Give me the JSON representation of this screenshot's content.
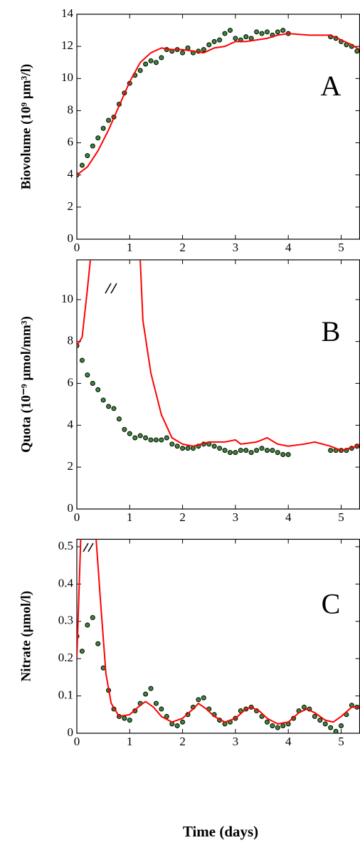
{
  "chart_data": [
    {
      "type": "line",
      "y_label": "Biovolume (10⁹ µm³/l)",
      "annotation": "A",
      "xlim": [
        0,
        5.35
      ],
      "xticks": [
        0,
        1,
        2,
        3,
        4,
        5
      ],
      "ylim": [
        0,
        14
      ],
      "yticks": [
        0,
        2,
        4,
        6,
        8,
        10,
        12,
        14
      ],
      "series": [
        {
          "marker": "o",
          "color": "#3a8a3a",
          "x": [
            0,
            0.1,
            0.2,
            0.3,
            0.4,
            0.5,
            0.6,
            0.7,
            0.8,
            0.9,
            1.0,
            1.1,
            1.2,
            1.3,
            1.4,
            1.5,
            1.6,
            1.7,
            1.8,
            1.9,
            2.0,
            2.1,
            2.2,
            2.3,
            2.4,
            2.5,
            2.6,
            2.7,
            2.8,
            2.9,
            3.0,
            3.1,
            3.2,
            3.3,
            3.4,
            3.5,
            3.6,
            3.7,
            3.8,
            3.9,
            4.0,
            4.8,
            4.9,
            5.0,
            5.1,
            5.2,
            5.3
          ],
          "values": [
            4,
            4.6,
            5.2,
            5.8,
            6.3,
            6.9,
            7.4,
            7.6,
            8.4,
            9.1,
            9.7,
            10.2,
            10.5,
            10.9,
            11.1,
            11.0,
            11.3,
            11.8,
            11.7,
            11.8,
            11.6,
            11.9,
            11.6,
            11.7,
            11.8,
            12.1,
            12.3,
            12.4,
            12.8,
            13.0,
            12.5,
            12.4,
            12.6,
            12.5,
            12.9,
            12.8,
            12.9,
            12.7,
            12.9,
            13.0,
            12.8,
            12.6,
            12.5,
            12.3,
            12.1,
            12.0,
            11.7
          ]
        },
        {
          "color": "#ff0000",
          "x": [
            0,
            0.2,
            0.4,
            0.6,
            0.8,
            1.0,
            1.2,
            1.4,
            1.6,
            1.8,
            2.0,
            2.2,
            2.4,
            2.6,
            2.8,
            3.0,
            3.2,
            3.4,
            3.6,
            3.8,
            4.0,
            4.4,
            4.8,
            5.0,
            5.2,
            5.35
          ],
          "values": [
            4,
            4.5,
            5.5,
            6.8,
            8.3,
            9.8,
            11.0,
            11.6,
            11.9,
            11.8,
            11.8,
            11.7,
            11.6,
            11.9,
            12.0,
            12.3,
            12.3,
            12.4,
            12.5,
            12.7,
            12.8,
            12.7,
            12.7,
            12.4,
            12.1,
            11.8
          ]
        }
      ]
    },
    {
      "type": "line",
      "y_label": "Quota (10⁻⁹ µmol/mm³)",
      "annotation": "B",
      "xlim": [
        0,
        5.35
      ],
      "xticks": [
        0,
        1,
        2,
        3,
        4,
        5
      ],
      "ylim": [
        0,
        11.9
      ],
      "yticks": [
        0,
        2,
        4,
        6,
        8,
        10
      ],
      "series": [
        {
          "marker": "o",
          "color": "#3a8a3a",
          "x": [
            0,
            0.1,
            0.2,
            0.3,
            0.4,
            0.5,
            0.6,
            0.7,
            0.8,
            0.9,
            1.0,
            1.1,
            1.2,
            1.3,
            1.4,
            1.5,
            1.6,
            1.7,
            1.8,
            1.9,
            2.0,
            2.1,
            2.2,
            2.3,
            2.4,
            2.5,
            2.6,
            2.7,
            2.8,
            2.9,
            3.0,
            3.1,
            3.2,
            3.3,
            3.4,
            3.5,
            3.6,
            3.7,
            3.8,
            3.9,
            4.0,
            4.8,
            4.9,
            5.0,
            5.1,
            5.2,
            5.3
          ],
          "values": [
            7.8,
            7.1,
            6.4,
            6.0,
            5.7,
            5.2,
            4.9,
            4.8,
            4.3,
            3.8,
            3.6,
            3.4,
            3.5,
            3.4,
            3.3,
            3.3,
            3.3,
            3.4,
            3.1,
            3.0,
            2.9,
            2.9,
            2.9,
            3.0,
            3.1,
            3.1,
            3.0,
            2.9,
            2.8,
            2.7,
            2.7,
            2.8,
            2.8,
            2.7,
            2.8,
            2.9,
            2.8,
            2.8,
            2.7,
            2.6,
            2.6,
            2.8,
            2.8,
            2.8,
            2.8,
            2.9,
            3.0
          ]
        },
        {
          "color": "#ff0000",
          "x": [
            0,
            0.1,
            0.2,
            0.3,
            null,
            1.18,
            1.25,
            1.4,
            1.6,
            1.8,
            2.0,
            2.2,
            2.5,
            2.8,
            3.0,
            3.1,
            3.4,
            3.6,
            3.8,
            4.0,
            4.3,
            4.5,
            4.8,
            5.0,
            5.3,
            5.35
          ],
          "values": [
            7.8,
            8.2,
            10.5,
            13,
            null,
            13,
            9,
            6.5,
            4.5,
            3.4,
            3.1,
            3.0,
            3.2,
            3.2,
            3.3,
            3.1,
            3.2,
            3.4,
            3.1,
            3.0,
            3.1,
            3.2,
            3.0,
            2.8,
            3.0,
            3.1
          ]
        }
      ]
    },
    {
      "type": "line",
      "y_label": "Nitrate (µmol/l)",
      "annotation": "C",
      "x_label": "Time (days)",
      "xlim": [
        0,
        5.35
      ],
      "xticks": [
        0,
        1,
        2,
        3,
        4,
        5
      ],
      "ylim": [
        0,
        0.52
      ],
      "yticks": [
        0,
        0.1,
        0.2,
        0.3,
        0.4,
        0.5
      ],
      "series": [
        {
          "marker": "o",
          "color": "#3a8a3a",
          "x": [
            0,
            0.1,
            0.2,
            0.3,
            0.4,
            0.5,
            0.6,
            0.7,
            0.8,
            0.9,
            1.0,
            1.1,
            1.2,
            1.3,
            1.4,
            1.5,
            1.6,
            1.7,
            1.8,
            1.9,
            2.0,
            2.1,
            2.2,
            2.3,
            2.4,
            2.5,
            2.6,
            2.7,
            2.8,
            2.9,
            3.0,
            3.1,
            3.2,
            3.3,
            3.4,
            3.5,
            3.6,
            3.7,
            3.8,
            3.9,
            4.0,
            4.1,
            4.2,
            4.3,
            4.4,
            4.5,
            4.6,
            4.7,
            4.8,
            4.9,
            5.0,
            5.1,
            5.2,
            5.3
          ],
          "values": [
            0.26,
            0.22,
            0.29,
            0.31,
            0.24,
            0.175,
            0.115,
            0.065,
            0.045,
            0.04,
            0.035,
            0.06,
            0.08,
            0.105,
            0.12,
            0.08,
            0.065,
            0.045,
            0.025,
            0.02,
            0.03,
            0.05,
            0.07,
            0.09,
            0.095,
            0.065,
            0.05,
            0.035,
            0.025,
            0.03,
            0.04,
            0.06,
            0.065,
            0.07,
            0.06,
            0.045,
            0.03,
            0.02,
            0.015,
            0.02,
            0.025,
            0.04,
            0.06,
            0.07,
            0.065,
            0.045,
            0.035,
            0.025,
            0.015,
            0.005,
            0.02,
            0.05,
            0.075,
            0.07
          ]
        },
        {
          "color": "#ff0000",
          "x": [
            0,
            0.08,
            0.2,
            0.35,
            0.45,
            0.55,
            0.65,
            0.8,
            1.0,
            1.2,
            1.3,
            1.45,
            1.6,
            1.8,
            2.0,
            2.2,
            2.3,
            2.45,
            2.6,
            2.8,
            3.0,
            3.2,
            3.3,
            3.45,
            3.6,
            3.8,
            4.0,
            4.2,
            4.35,
            4.5,
            4.7,
            4.85,
            5.0,
            5.2,
            5.35
          ],
          "values": [
            0.2,
            0.55,
            0.56,
            0.55,
            0.35,
            0.16,
            0.08,
            0.045,
            0.05,
            0.075,
            0.085,
            0.07,
            0.045,
            0.03,
            0.04,
            0.065,
            0.08,
            0.065,
            0.045,
            0.03,
            0.04,
            0.065,
            0.07,
            0.06,
            0.04,
            0.025,
            0.03,
            0.055,
            0.065,
            0.055,
            0.035,
            0.03,
            0.045,
            0.07,
            0.07
          ]
        }
      ]
    }
  ]
}
